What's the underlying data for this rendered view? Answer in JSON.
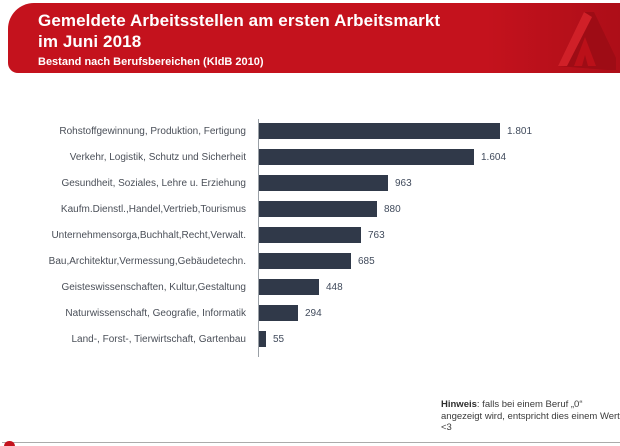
{
  "header": {
    "title_line1": "Gemeldete Arbeitsstellen am ersten Arbeitsmarkt",
    "title_line2": "im Juni 2018",
    "subtitle": "Bestand nach Berufsbereichen (KldB 2010)",
    "band_color": "#c4121d",
    "logo": "bundesagentur-fuer-arbeit-a-mark"
  },
  "chart_data": {
    "type": "bar",
    "orientation": "horizontal",
    "title": "Gemeldete Arbeitsstellen am ersten Arbeitsmarkt im Juni 2018",
    "subtitle": "Bestand nach Berufsbereichen (KldB 2010)",
    "categories": [
      "Rohstoffgewinnung, Produktion, Fertigung",
      "Verkehr, Logistik, Schutz und Sicherheit",
      "Gesundheit, Soziales, Lehre u. Erziehung",
      "Kaufm.Dienstl.,Handel,Vertrieb,Tourismus",
      "Unternehmensorga,Buchhalt,Recht,Verwalt.",
      "Bau,Architektur,Vermessung,Gebäudetechn.",
      "Geisteswissenschaften, Kultur,Gestaltung",
      "Naturwissenschaft, Geografie, Informatik",
      "Land-, Forst-, Tierwirtschaft, Gartenbau"
    ],
    "values": [
      1801,
      1604,
      963,
      880,
      763,
      685,
      448,
      294,
      55
    ],
    "value_labels": [
      "1.801",
      "1.604",
      "963",
      "880",
      "763",
      "685",
      "448",
      "294",
      "55"
    ],
    "xlim": [
      0,
      1900
    ],
    "bar_color": "#303949",
    "grid": false,
    "legend": "none"
  },
  "note": {
    "label": "Hinweis",
    "text": ": falls bei einem Beruf „0“ angezeigt wird, entspricht dies einem Wert <3"
  }
}
